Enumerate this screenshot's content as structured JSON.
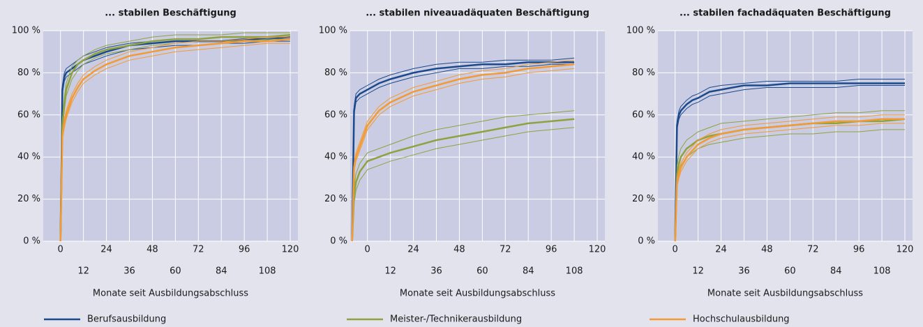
{
  "chart_data": [
    {
      "type": "line",
      "title": "... stabilen Beschäftigung",
      "xlabel": "Monate seit Ausbildungsabschluss",
      "x": [
        0,
        1,
        2,
        3,
        6,
        9,
        12,
        18,
        24,
        36,
        48,
        60,
        72,
        84,
        96,
        108,
        120
      ],
      "xlim": [
        -9,
        124
      ],
      "xticks": [
        0,
        12,
        24,
        36,
        48,
        60,
        72,
        84,
        96,
        108,
        120
      ],
      "ylim": [
        0,
        100
      ],
      "yticks": [
        {
          "value": 0,
          "label": "0 %"
        },
        {
          "value": 20,
          "label": "20 %"
        },
        {
          "value": 40,
          "label": "40 %"
        },
        {
          "value": 60,
          "label": "60 %"
        },
        {
          "value": 80,
          "label": "80 %"
        },
        {
          "value": 100,
          "label": "100 %"
        }
      ],
      "grid": true,
      "series": [
        {
          "name": "Berufsausbildung",
          "color": "#1b4a8c",
          "values": [
            0,
            72,
            78,
            80,
            82,
            84,
            86,
            88,
            90,
            93,
            94,
            95,
            95,
            95,
            96,
            96,
            97
          ],
          "lower": [
            0,
            70,
            76,
            78,
            80,
            82,
            84,
            86,
            88,
            91,
            92,
            93,
            93,
            94,
            94,
            95,
            95
          ],
          "upper": [
            0,
            74,
            80,
            82,
            84,
            86,
            88,
            90,
            92,
            94,
            95,
            96,
            96,
            97,
            97,
            97,
            98
          ]
        },
        {
          "name": "Meister-/Technikerausbildung",
          "color": "#8fa23e",
          "values": [
            0,
            55,
            65,
            72,
            80,
            84,
            86,
            89,
            91,
            93,
            95,
            96,
            96,
            97,
            97,
            97,
            98
          ],
          "lower": [
            0,
            52,
            62,
            69,
            77,
            81,
            84,
            87,
            89,
            91,
            93,
            94,
            95,
            95,
            95,
            96,
            96
          ],
          "upper": [
            0,
            58,
            68,
            75,
            83,
            86,
            88,
            91,
            93,
            95,
            97,
            98,
            98,
            98,
            99,
            99,
            99
          ]
        },
        {
          "name": "Hochschulausbildung",
          "color": "#f39a33",
          "values": [
            0,
            50,
            56,
            60,
            68,
            73,
            77,
            81,
            84,
            88,
            90,
            92,
            93,
            94,
            95,
            95,
            96
          ],
          "lower": [
            0,
            48,
            54,
            58,
            66,
            71,
            75,
            79,
            82,
            86,
            88,
            90,
            91,
            92,
            93,
            94,
            94
          ],
          "upper": [
            0,
            52,
            58,
            62,
            70,
            75,
            79,
            83,
            86,
            90,
            92,
            94,
            95,
            95,
            96,
            97,
            97
          ]
        }
      ]
    },
    {
      "type": "line",
      "title": "... stabilen niveauadäquaten Beschäftigung",
      "xlabel": "Monate seit Ausbildungsabschluss",
      "x": [
        -8,
        -7,
        -6,
        -4,
        0,
        6,
        12,
        24,
        36,
        48,
        60,
        72,
        84,
        96,
        108
      ],
      "xlim": [
        -9,
        124
      ],
      "xticks": [
        0,
        12,
        24,
        36,
        48,
        60,
        72,
        84,
        96,
        108,
        120
      ],
      "ylim": [
        0,
        100
      ],
      "yticks": [
        {
          "value": 0,
          "label": "0 %"
        },
        {
          "value": 20,
          "label": "20 %"
        },
        {
          "value": 40,
          "label": "40 %"
        },
        {
          "value": 60,
          "label": "60 %"
        },
        {
          "value": 80,
          "label": "80 %"
        },
        {
          "value": 100,
          "label": "100 %"
        }
      ],
      "grid": true,
      "series": [
        {
          "name": "Berufsausbildung",
          "color": "#1b4a8c",
          "values": [
            0,
            62,
            68,
            70,
            72,
            75,
            77,
            80,
            82,
            83,
            84,
            84,
            85,
            85,
            85
          ],
          "lower": [
            0,
            60,
            66,
            68,
            70,
            73,
            75,
            78,
            80,
            82,
            82,
            83,
            83,
            84,
            84
          ],
          "upper": [
            0,
            64,
            70,
            72,
            74,
            77,
            79,
            82,
            84,
            85,
            85,
            86,
            86,
            86,
            87
          ]
        },
        {
          "name": "Meister-/Technikerausbildung",
          "color": "#8fa23e",
          "values": [
            0,
            22,
            28,
            33,
            38,
            40,
            42,
            45,
            48,
            50,
            52,
            54,
            56,
            57,
            58
          ],
          "lower": [
            0,
            18,
            24,
            29,
            34,
            36,
            38,
            41,
            44,
            46,
            48,
            50,
            52,
            53,
            54
          ],
          "upper": [
            0,
            26,
            32,
            37,
            42,
            44,
            46,
            50,
            53,
            55,
            57,
            59,
            60,
            61,
            62
          ]
        },
        {
          "name": "Hochschulausbildung",
          "color": "#f39a33",
          "values": [
            0,
            35,
            40,
            45,
            55,
            62,
            66,
            71,
            74,
            77,
            79,
            80,
            82,
            83,
            84
          ],
          "lower": [
            0,
            33,
            38,
            43,
            53,
            60,
            64,
            69,
            72,
            75,
            77,
            78,
            80,
            81,
            82
          ],
          "upper": [
            0,
            37,
            42,
            47,
            57,
            64,
            68,
            73,
            76,
            79,
            81,
            82,
            84,
            85,
            86
          ]
        }
      ]
    },
    {
      "type": "line",
      "title": "... stabilen fachadäquaten Beschäftigung",
      "xlabel": "Monate seit Ausbildungsabschluss",
      "x": [
        0,
        1,
        2,
        3,
        6,
        9,
        12,
        18,
        24,
        36,
        48,
        60,
        72,
        84,
        96,
        108,
        120
      ],
      "xlim": [
        -9,
        124
      ],
      "xticks": [
        0,
        12,
        24,
        36,
        48,
        60,
        72,
        84,
        96,
        108,
        120
      ],
      "ylim": [
        0,
        100
      ],
      "yticks": [
        {
          "value": 0,
          "label": "0 %"
        },
        {
          "value": 20,
          "label": "20 %"
        },
        {
          "value": 40,
          "label": "40 %"
        },
        {
          "value": 60,
          "label": "60 %"
        },
        {
          "value": 80,
          "label": "80 %"
        },
        {
          "value": 100,
          "label": "100 %"
        }
      ],
      "grid": true,
      "series": [
        {
          "name": "Berufsausbildung",
          "color": "#1b4a8c",
          "values": [
            0,
            55,
            60,
            62,
            65,
            67,
            68,
            71,
            72,
            74,
            74,
            75,
            75,
            75,
            75,
            75,
            75
          ],
          "lower": [
            0,
            53,
            58,
            60,
            63,
            65,
            66,
            69,
            70,
            72,
            73,
            73,
            73,
            73,
            74,
            74,
            74
          ],
          "upper": [
            0,
            57,
            62,
            64,
            67,
            69,
            70,
            73,
            74,
            75,
            76,
            76,
            76,
            76,
            77,
            77,
            77
          ]
        },
        {
          "name": "Meister-/Technikerausbildung",
          "color": "#8fa23e",
          "values": [
            0,
            32,
            37,
            40,
            44,
            46,
            48,
            50,
            51,
            53,
            54,
            55,
            56,
            56,
            57,
            57,
            58
          ],
          "lower": [
            0,
            28,
            33,
            36,
            40,
            42,
            44,
            46,
            47,
            49,
            50,
            51,
            51,
            52,
            52,
            53,
            53
          ],
          "upper": [
            0,
            36,
            41,
            44,
            48,
            50,
            52,
            54,
            56,
            57,
            58,
            59,
            60,
            61,
            61,
            62,
            62
          ]
        },
        {
          "name": "Hochschulausbildung",
          "color": "#f39a33",
          "values": [
            0,
            28,
            32,
            35,
            40,
            43,
            46,
            49,
            51,
            53,
            54,
            55,
            56,
            57,
            57,
            58,
            58
          ],
          "lower": [
            0,
            26,
            30,
            33,
            38,
            41,
            44,
            47,
            49,
            51,
            52,
            53,
            54,
            55,
            55,
            56,
            56
          ],
          "upper": [
            0,
            30,
            34,
            37,
            42,
            45,
            48,
            51,
            53,
            55,
            56,
            57,
            58,
            59,
            59,
            60,
            60
          ]
        }
      ]
    }
  ]
}
